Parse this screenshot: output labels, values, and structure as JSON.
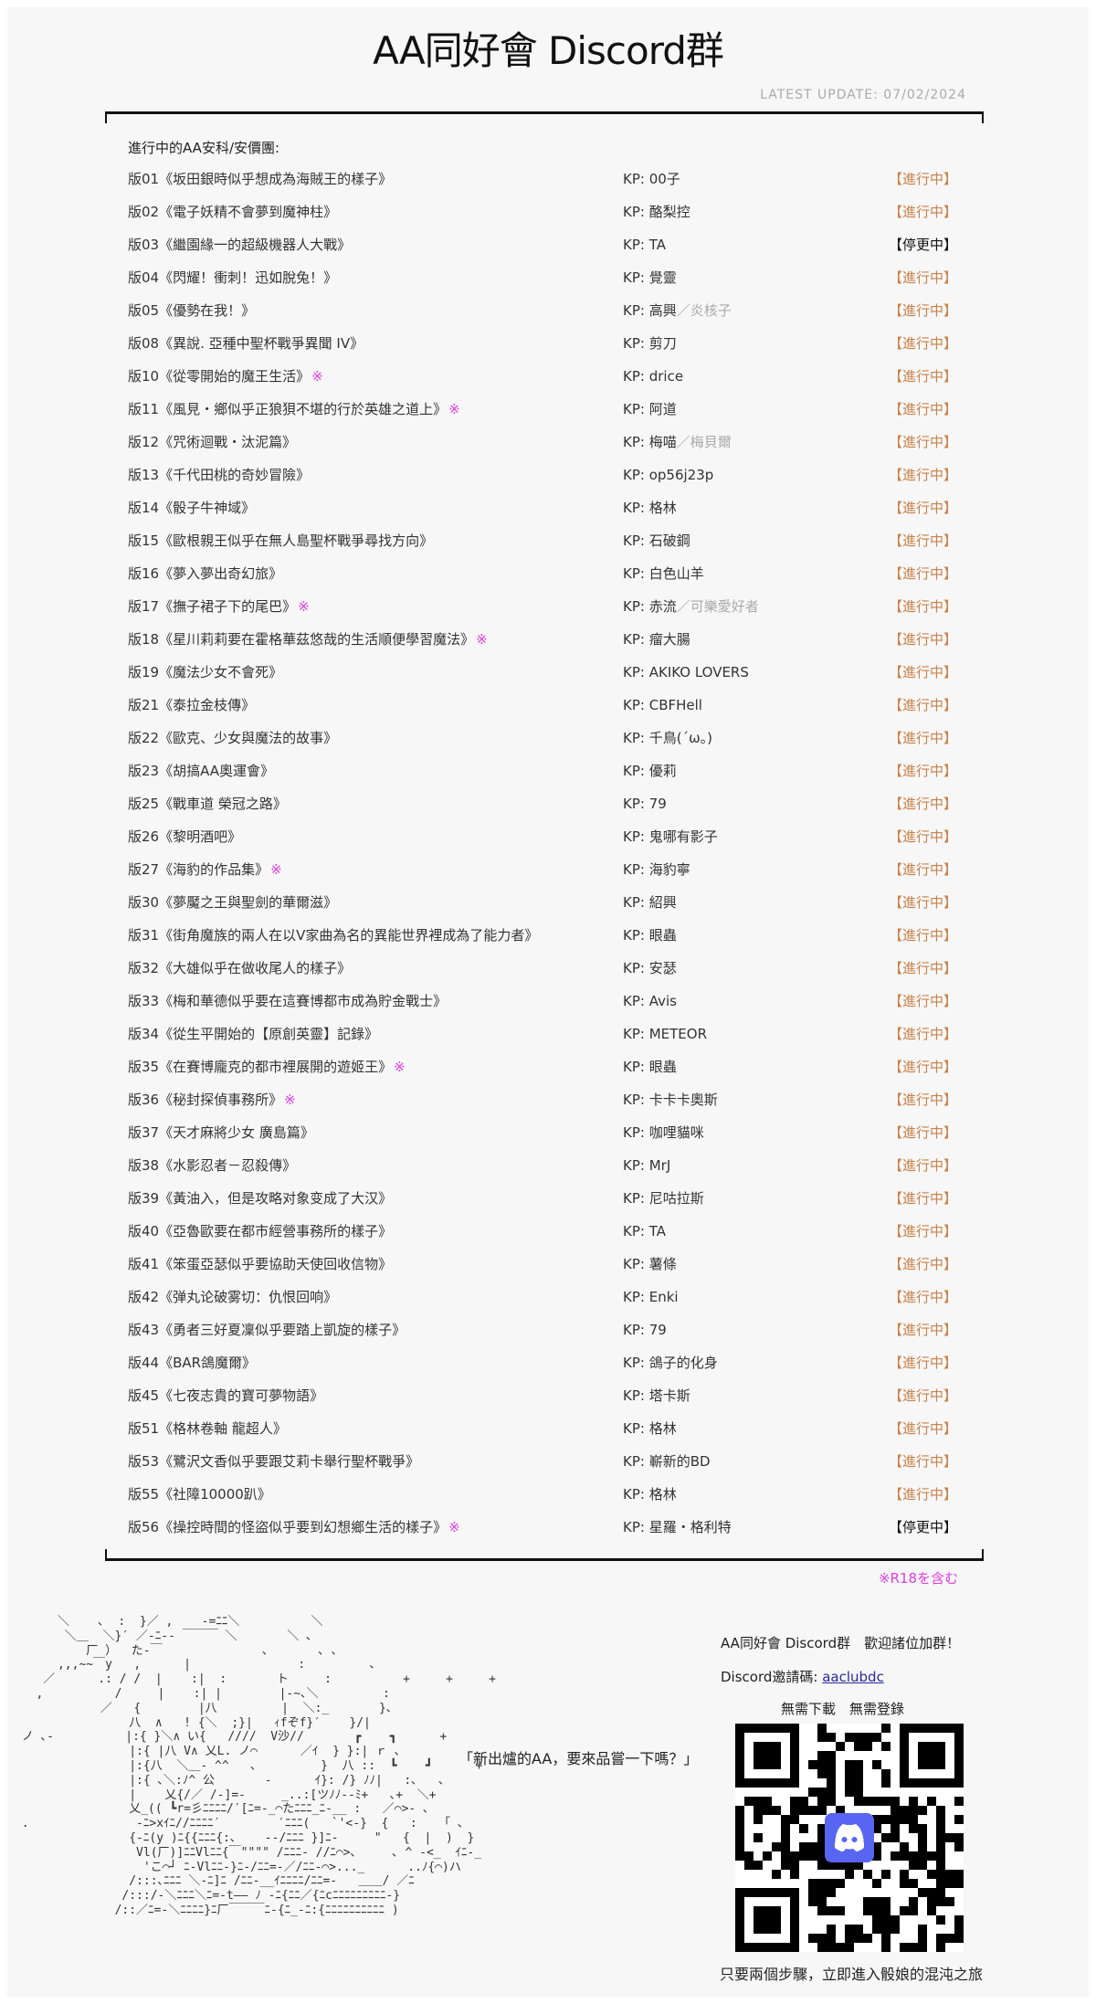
{
  "header": {
    "title": "AA同好會 Discord群",
    "latest_update": "LATEST  UPDATE: 07/02/2024"
  },
  "list": {
    "heading": "進行中的AA安科/安價團:",
    "kp_prefix": "KP: ",
    "r18_note": "※R18を含む",
    "colors": {
      "ongoing": "#c8824a",
      "paused": "#111111",
      "r18_mark": "#e23de0",
      "secondary_kp": "#aaaaaa"
    },
    "rows": [
      {
        "title": "版01《坂田銀時似乎想成為海賊王的樣子》",
        "mark": "",
        "kp": "00子",
        "kp2": "",
        "status": "【進行中】",
        "paused": false
      },
      {
        "title": "版02《電子妖精不會夢到魔神柱》",
        "mark": "",
        "kp": "酪梨控",
        "kp2": "",
        "status": "【進行中】",
        "paused": false
      },
      {
        "title": "版03《繼園緣一的超級機器人大戰》",
        "mark": "",
        "kp": "TA",
        "kp2": "",
        "status": "【停更中】",
        "paused": true
      },
      {
        "title": "版04《閃耀！衝刺！迅如脫兔！》",
        "mark": "",
        "kp": "覺靈",
        "kp2": "",
        "status": "【進行中】",
        "paused": false
      },
      {
        "title": "版05《優勢在我！》",
        "mark": "",
        "kp": "高興",
        "kp2": "／炎核子",
        "status": "【進行中】",
        "paused": false
      },
      {
        "title": "版08《異說. 亞種中聖杯戰爭異聞 IV》",
        "mark": "",
        "kp": "剪刀",
        "kp2": "",
        "status": "【進行中】",
        "paused": false
      },
      {
        "title": "版10《從零開始的魔王生活》",
        "mark": "※",
        "kp": "drice",
        "kp2": "",
        "status": "【進行中】",
        "paused": false
      },
      {
        "title": "版11《風見・鄉似乎正狼狽不堪的行於英雄之道上》",
        "mark": "※",
        "kp": "阿道",
        "kp2": "",
        "status": "【進行中】",
        "paused": false
      },
      {
        "title": "版12《咒術迴戰・汰泥篇》",
        "mark": "",
        "kp": "梅喵",
        "kp2": "／梅貝爾",
        "status": "【進行中】",
        "paused": false
      },
      {
        "title": "版13《千代田桃的奇妙冒險》",
        "mark": "",
        "kp": "op56j23p",
        "kp2": "",
        "status": "【進行中】",
        "paused": false
      },
      {
        "title": "版14《骰子牛神域》",
        "mark": "",
        "kp": "格林",
        "kp2": "",
        "status": "【進行中】",
        "paused": false
      },
      {
        "title": "版15《歐根親王似乎在無人島聖杯戰爭尋找方向》",
        "mark": "",
        "kp": "石破鋼",
        "kp2": "",
        "status": "【進行中】",
        "paused": false
      },
      {
        "title": "版16《夢入夢出奇幻旅》",
        "mark": "",
        "kp": "白色山羊",
        "kp2": "",
        "status": "【進行中】",
        "paused": false
      },
      {
        "title": "版17《撫子裙子下的尾巴》",
        "mark": "※",
        "kp": "赤流",
        "kp2": "／可樂愛好者",
        "status": "【進行中】",
        "paused": false
      },
      {
        "title": "版18《星川莉莉要在霍格華茲悠哉的生活順便學習魔法》",
        "mark": "※",
        "kp": "瘤大腸",
        "kp2": "",
        "status": "【進行中】",
        "paused": false
      },
      {
        "title": "版19《魔法少女不會死》",
        "mark": "",
        "kp": "AKIKO LOVERS",
        "kp2": "",
        "status": "【進行中】",
        "paused": false
      },
      {
        "title": "版21《泰拉金枝傳》",
        "mark": "",
        "kp": "CBFHell",
        "kp2": "",
        "status": "【進行中】",
        "paused": false
      },
      {
        "title": "版22《歐克、少女與魔法的故事》",
        "mark": "",
        "kp": "千鳥(´ω。)",
        "kp2": "",
        "status": "【進行中】",
        "paused": false
      },
      {
        "title": "版23《胡搞AA奧運會》",
        "mark": "",
        "kp": "優莉",
        "kp2": "",
        "status": "【進行中】",
        "paused": false
      },
      {
        "title": "版25《戰車道 榮冠之路》",
        "mark": "",
        "kp": "79",
        "kp2": "",
        "status": "【進行中】",
        "paused": false
      },
      {
        "title": "版26《黎明酒吧》",
        "mark": "",
        "kp": "鬼哪有影子",
        "kp2": "",
        "status": "【進行中】",
        "paused": false
      },
      {
        "title": "版27《海豹的作品集》",
        "mark": "※",
        "kp": "海豹寧",
        "kp2": "",
        "status": "【進行中】",
        "paused": false
      },
      {
        "title": "版30《夢魘之王與聖劍的華爾滋》",
        "mark": "",
        "kp": "紹興",
        "kp2": "",
        "status": "【進行中】",
        "paused": false
      },
      {
        "title": "版31《街角魔族的兩人在以V家曲為名的異能世界裡成為了能力者》",
        "mark": "",
        "kp": "眼蟲",
        "kp2": "",
        "status": "【進行中】",
        "paused": false
      },
      {
        "title": "版32《大雄似乎在做收尾人的樣子》",
        "mark": "",
        "kp": "安瑟",
        "kp2": "",
        "status": "【進行中】",
        "paused": false
      },
      {
        "title": "版33《梅和華德似乎要在這賽博都市成為貯金戰士》",
        "mark": "",
        "kp": "Avis",
        "kp2": "",
        "status": "【進行中】",
        "paused": false
      },
      {
        "title": "版34《從生平開始的【原創英靈】記錄》",
        "mark": "",
        "kp": "METEOR",
        "kp2": "",
        "status": "【進行中】",
        "paused": false
      },
      {
        "title": "版35《在賽博龐克的都市裡展開的遊姬王》",
        "mark": "※",
        "kp": "眼蟲",
        "kp2": "",
        "status": "【進行中】",
        "paused": false
      },
      {
        "title": "版36《秘封探偵事務所》",
        "mark": "※",
        "kp": "卡卡卡奧斯",
        "kp2": "",
        "status": "【進行中】",
        "paused": false
      },
      {
        "title": "版37《天才麻將少女 廣島篇》",
        "mark": "",
        "kp": "咖哩貓咪",
        "kp2": "",
        "status": "【進行中】",
        "paused": false
      },
      {
        "title": "版38《水影忍者－忍殺傳》",
        "mark": "",
        "kp": "MrJ",
        "kp2": "",
        "status": "【進行中】",
        "paused": false
      },
      {
        "title": "版39《黃油入，但是攻略对象变成了大汉》",
        "mark": "",
        "kp": "尼咕拉斯",
        "kp2": "",
        "status": "【進行中】",
        "paused": false
      },
      {
        "title": "版40《亞魯歐要在都市經營事務所的樣子》",
        "mark": "",
        "kp": "TA",
        "kp2": "",
        "status": "【進行中】",
        "paused": false
      },
      {
        "title": "版41《笨蛋亞瑟似乎要協助天使回收信物》",
        "mark": "",
        "kp": "薯條",
        "kp2": "",
        "status": "【進行中】",
        "paused": false
      },
      {
        "title": "版42《弹丸论破雾切：仇恨回响》",
        "mark": "",
        "kp": "Enki",
        "kp2": "",
        "status": "【進行中】",
        "paused": false
      },
      {
        "title": "版43《勇者三好夏凜似乎要踏上凱旋的樣子》",
        "mark": "",
        "kp": "79",
        "kp2": "",
        "status": "【進行中】",
        "paused": false
      },
      {
        "title": "版44《BAR鴿魔爾》",
        "mark": "",
        "kp": "鴿子的化身",
        "kp2": "",
        "status": "【進行中】",
        "paused": false
      },
      {
        "title": "版45《七夜志貴的寶可夢物語》",
        "mark": "",
        "kp": "塔卡斯",
        "kp2": "",
        "status": "【進行中】",
        "paused": false
      },
      {
        "title": "版51《格林卷軸 龍超人》",
        "mark": "",
        "kp": "格林",
        "kp2": "",
        "status": "【進行中】",
        "paused": false
      },
      {
        "title": "版53《鷺沢文香似乎要跟艾莉卡舉行聖杯戰爭》",
        "mark": "",
        "kp": "嶄新的BD",
        "kp2": "",
        "status": "【進行中】",
        "paused": false
      },
      {
        "title": "版55《社障10000趴》",
        "mark": "",
        "kp": "格林",
        "kp2": "",
        "status": "【進行中】",
        "paused": false
      },
      {
        "title": "版56《操控時間的怪盜似乎要到幻想鄉生活的樣子》",
        "mark": "※",
        "kp": "星羅・格利特",
        "kp2": "",
        "status": "【停更中】",
        "paused": true
      }
    ]
  },
  "footer": {
    "speech": "「新出爐的AA，要來品嘗一下嗎？」",
    "welcome": "AA同好會 Discord群　歡迎諸位加群！",
    "invite_label": "Discord邀請碼: ",
    "invite_code": "aaclubdc",
    "no_download": "無需下載　無需登錄",
    "caption": "只要兩個步驟，立即進入骰娘的混沌之旅",
    "discord_color": "#5865f2",
    "aa_art": "      ＼    ､  :  }／ ,    -=ﾆﾆ＼          ＼\n       ＼＿  ＼}′ ／-ﾆ‐‐ ￣￣￣ ＼       ＼ ､\n          厂 ）  た‐￣              ､       ､ ､\n      ‚‚‚~~￣y   ,      |               :         ､\n    ／      .: / /  |    :|  :       ト     :          +     +     +\n   ,          /     |    :| |        |‐~､＼         :\n            ／   {        |八         |  ＼:_       }､\n                八  ∧   ! {＼  ;}|   ｨfぞf}′    }/|\n ノ ､‐          |:{ }＼∧ い{   ////  V沙//       ┏    ┓      +\n                |:{ |八 V∧ 乂L. ノ⌒      ／ｲ  } }:| ｒ ､\n                |:{八  ＼＿‐ ^^   ､         }  八 ::  ┗    ┛      +\n                |:{ ､＼:ﾉ^ 公       -      ｲ}: /} ﾉﾉ|   :､   ､\n                |    乂{/／ /‐]=-     _..:[ツﾉﾉ‐‐ﾐ+   ､+  ＼+\n                乂_(( ┗r=彡ﾆﾆﾆﾆ/′[ﾆ=-_⌒たﾆﾆﾆ_ﾆ-__ :   ／⌒>- ､\n .               -ﾆ>xｲﾆ//ﾆﾆﾆﾆ′        ′ﾆﾆﾆ(   `'<-}  {   :   「 ､\n                {-ﾆ(y )ﾆ{{ﾆﾆﾆ{:､    ‐-/ﾆﾆﾆ }]ﾆ-     \"   {  |  )  }\n                 Vl(厂)]ﾆﾆVlﾆﾆ{￣\"\"\"\" /ﾆﾆﾆ- //ﾆ⌒>､     ､ ^ -<_  ｲﾆ-_\n                  'こ⌒┘ ﾆ-Vlﾆﾆ-}ﾆ-/ﾆﾆ=-／/ﾆﾆ-⌒>..._      ..ﾉ{⌒)ハ\n                /:::､ﾆﾆﾆ ＼-ﾆ]ﾆ /ﾆﾆ-__ｲﾆﾆﾆﾆ/ﾆﾆ=-   ＿＿/ ／ﾆ\n               /:::/-＼ﾆﾆﾆ＼ﾆ=-t―― ﾉ -ﾆ{ﾆﾆ／{ﾆcﾆﾆﾆﾆﾆﾆﾆﾆﾆ-}\n              /::／ﾆ=-＼ﾆﾆﾆﾆ}ﾆ厂￣￣￣ﾆ-{ﾆ_-ﾆ:{ﾆﾆﾆﾆﾆﾆﾆﾆﾆﾆ )"
  }
}
